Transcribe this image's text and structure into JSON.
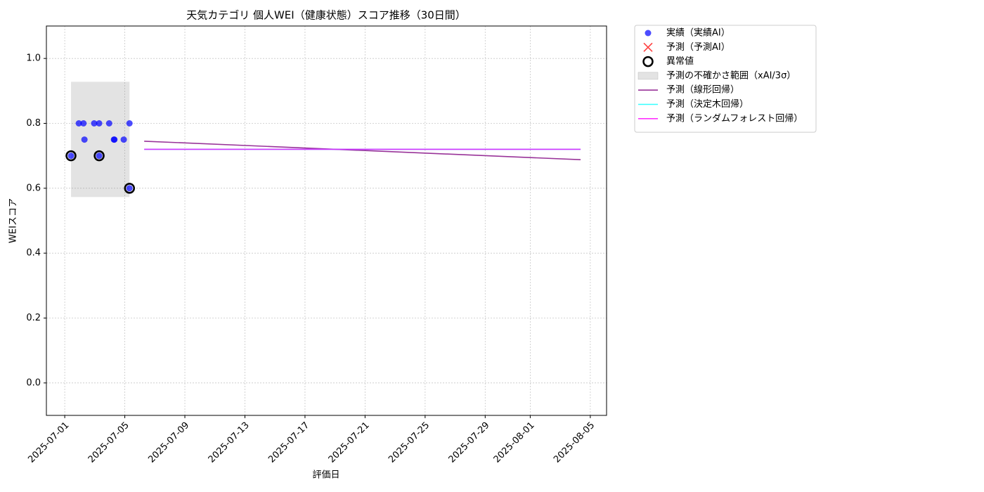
{
  "chart_data": {
    "type": "scatter",
    "title": "天気カテゴリ 個人WEI（健康状態）スコア推移（30日間）",
    "xlabel": "評価日",
    "ylabel": "WEIスコア",
    "xlim": [
      "2025-06-29T18:40",
      "2025-08-06T02:00"
    ],
    "xticks": [
      "2025-07-01",
      "2025-07-05",
      "2025-07-09",
      "2025-07-13",
      "2025-07-17",
      "2025-07-21",
      "2025-07-25",
      "2025-07-29",
      "2025-08-01",
      "2025-08-05"
    ],
    "ylim": [
      -0.1,
      1.1
    ],
    "yticks": [
      {
        "value": 0,
        "label": "0.0"
      },
      0.2,
      0.4,
      0.6,
      0.8,
      {
        "value": 1,
        "label": "1.0"
      }
    ],
    "grid": true,
    "legend": "outside-upper-right",
    "series": [
      {
        "name": "実績（実績AI）",
        "kind": "scatter",
        "marker": "dot",
        "color": "#0000ff",
        "x": [
          "2025-07-01T10:00",
          "2025-07-01T22:30",
          "2025-07-02T06:00",
          "2025-07-02T07:30",
          "2025-07-02T23:00",
          "2025-07-03T07:00",
          "2025-07-03T07:00",
          "2025-07-03T23:00",
          "2025-07-04T06:40",
          "2025-07-04T07:20",
          "2025-07-04T22:20",
          "2025-07-05T07:30",
          "2025-07-05T07:30"
        ],
        "values": [
          0.7,
          0.8,
          0.8,
          0.75,
          0.8,
          0.8,
          0.7,
          0.8,
          0.75,
          0.75,
          0.75,
          0.8,
          0.6
        ]
      },
      {
        "name": "予測（予測AI）",
        "kind": "scatter",
        "marker": "x",
        "color": "#ff0000",
        "x": [],
        "values": []
      },
      {
        "name": "異常値",
        "kind": "scatter",
        "marker": "ring",
        "color": "#000000",
        "x": [
          "2025-07-01T10:00",
          "2025-07-03T07:00",
          "2025-07-05T07:30"
        ],
        "values": [
          0.7,
          0.7,
          0.6
        ]
      },
      {
        "name": "予測の不確かさ範囲（xAI/3σ）",
        "kind": "band",
        "color": "#808080",
        "x": [
          "2025-07-01T10:00",
          "2025-07-05T07:30"
        ],
        "lower": [
          0.573,
          0.573
        ],
        "upper": [
          0.928,
          0.928
        ]
      },
      {
        "name": "予測（線形回帰）",
        "kind": "line",
        "color": "#800080",
        "x": [
          "2025-07-06T07:00",
          "2025-08-04T08:30"
        ],
        "values": [
          0.745,
          0.688
        ]
      },
      {
        "name": "予測（決定木回帰）",
        "kind": "line",
        "color": "#00ffff",
        "x": [
          "2025-07-06T07:00",
          "2025-08-04T08:30"
        ],
        "values": [
          0.72,
          0.72
        ]
      },
      {
        "name": "予測（ランダムフォレスト回帰）",
        "kind": "line",
        "color": "#ff00ff",
        "x": [
          "2025-07-06T07:00",
          "2025-08-04T08:30"
        ],
        "values": [
          0.72,
          0.72
        ]
      }
    ]
  }
}
